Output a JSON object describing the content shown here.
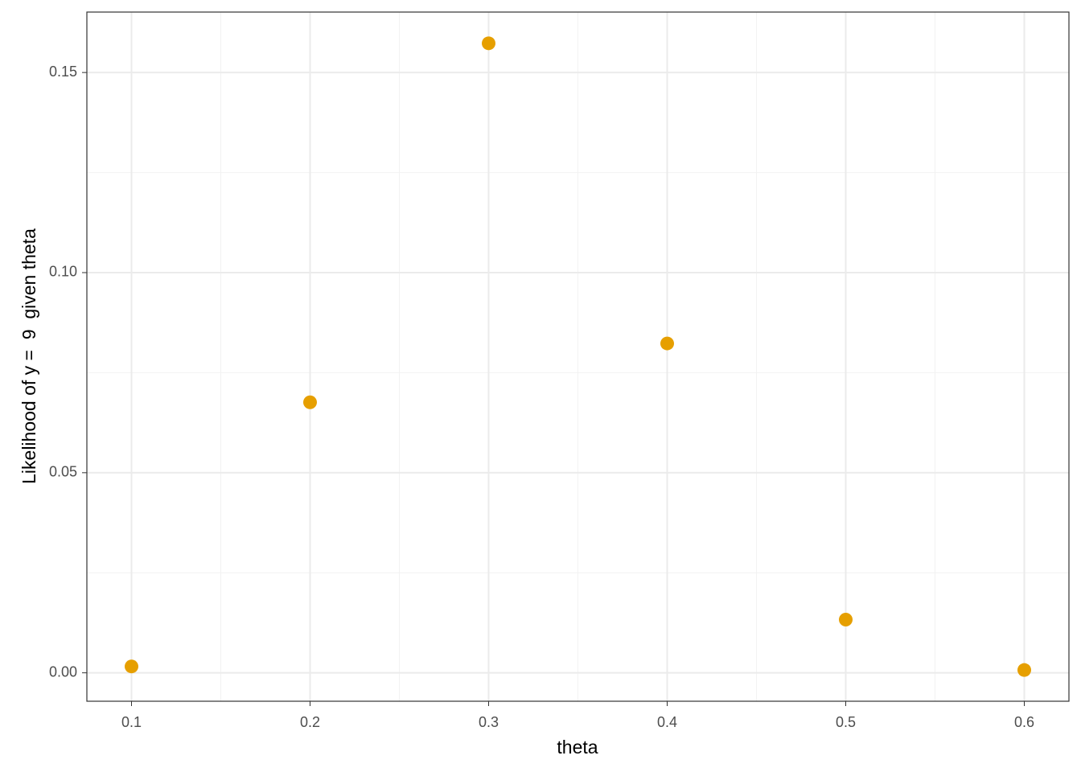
{
  "chart_data": {
    "type": "scatter",
    "x_label": "theta",
    "y_label": "Likelihood of y =  9  given theta",
    "x": [
      0.1,
      0.2,
      0.3,
      0.4,
      0.5,
      0.6
    ],
    "values": [
      0.0016,
      0.0676,
      0.1573,
      0.0823,
      0.0133,
      0.0007
    ],
    "color": "#E69F00",
    "xlim": [
      0.075,
      0.625
    ],
    "ylim": [
      -0.0071,
      0.1651
    ],
    "xticks": [
      0.1,
      0.2,
      0.3,
      0.4,
      0.5,
      0.6
    ],
    "yticks": [
      {
        "value": 0,
        "label": "0.00"
      },
      0.05,
      {
        "value": 0.1,
        "label": "0.10"
      },
      0.15
    ],
    "minor_xticks": [
      0.15,
      0.25,
      0.35,
      0.45,
      0.55
    ],
    "minor_yticks": [
      0.025,
      0.075,
      0.125
    ],
    "grid": true
  }
}
